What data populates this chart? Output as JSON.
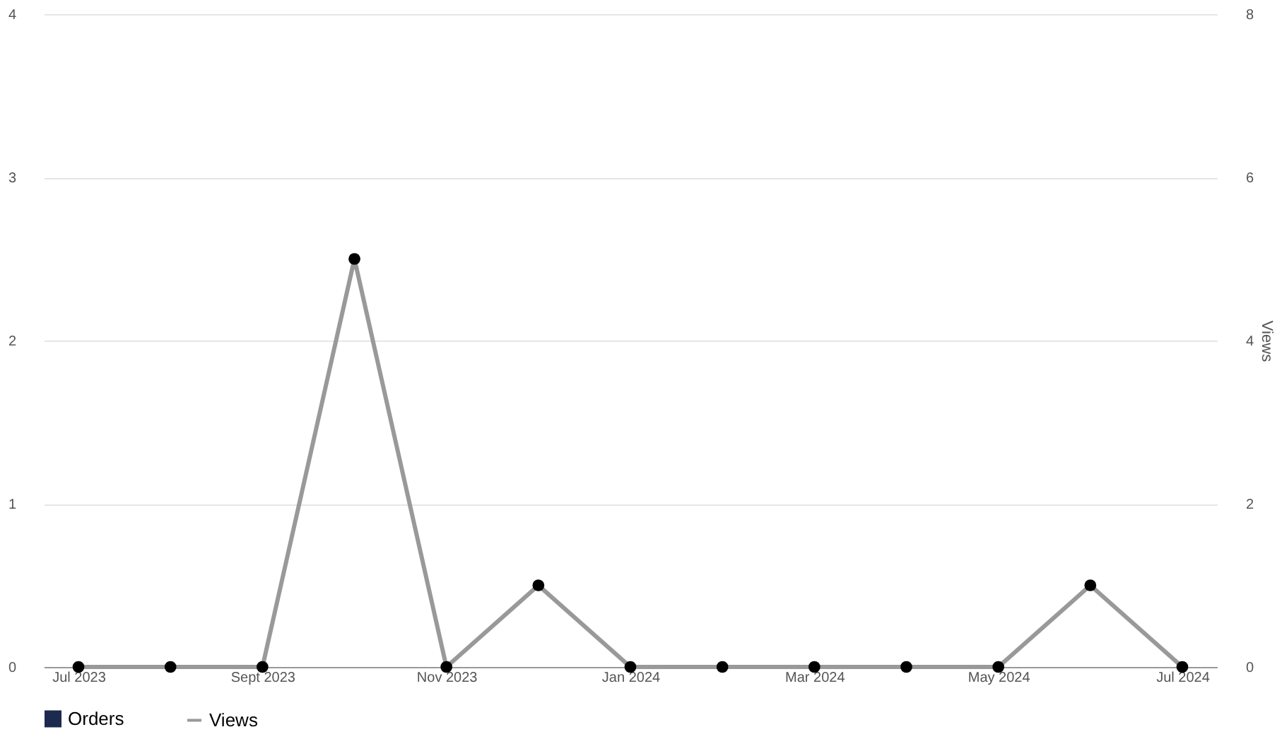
{
  "chart_data": {
    "type": "line",
    "y2label": "Views",
    "categories": [
      "Jul 2023",
      null,
      "Sept 2023",
      null,
      "Nov 2023",
      null,
      "Jan 2024",
      null,
      "Mar 2024",
      null,
      "May 2024",
      null,
      "Jul 2024"
    ],
    "series": [
      {
        "name": "Orders",
        "type": "bar",
        "color": "#1b2a4e",
        "values": [
          0,
          0,
          0,
          0,
          0,
          0,
          0,
          0,
          0,
          0,
          0,
          0,
          0
        ]
      },
      {
        "name": "Views",
        "axis": "y2",
        "color": "#999999",
        "marker": "circle",
        "values": [
          0,
          0,
          0,
          5,
          0,
          1,
          0,
          0,
          0,
          0,
          0,
          1,
          0
        ]
      }
    ],
    "ylim": [
      0,
      4
    ],
    "yticks": [
      0,
      1,
      2,
      3,
      4
    ],
    "y2lim": [
      0,
      8
    ],
    "y2ticks": [
      0,
      2,
      4,
      6,
      8
    ],
    "grid": "y",
    "legend": "bottom left"
  }
}
